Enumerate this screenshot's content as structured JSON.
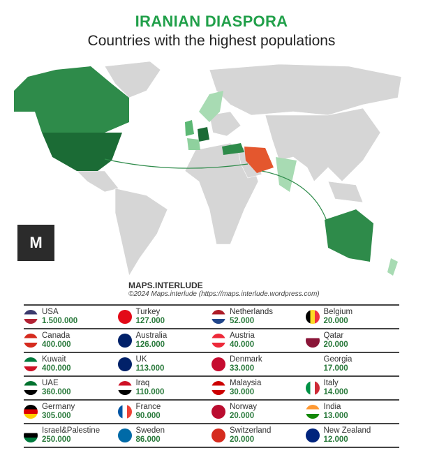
{
  "header": {
    "title": "IRANIAN DIASPORA",
    "subtitle": "Countries with the highest populations"
  },
  "logo": {
    "text": "M"
  },
  "credit": {
    "brand": "MAPS.INTERLUDE",
    "copyright": "©2024 Maps.interlude (https://maps.interlude.wordpress.com)"
  },
  "colors": {
    "title": "#21a04a",
    "iran": "#e4572e",
    "highest": "#1b6b35",
    "high": "#2e8b4a",
    "mid": "#5cb874",
    "low": "#a8dbb3",
    "none": "#d6d6d6"
  },
  "countries": [
    [
      {
        "name": "USA",
        "value": "1.500.000",
        "flag": "#3c3b6e,#fff,#b22234"
      },
      {
        "name": "Turkey",
        "value": "127.000",
        "flag": "#e30a17"
      },
      {
        "name": "Netherlands",
        "value": "52.000",
        "flag": "#ae1c28,#fff,#21468b"
      },
      {
        "name": "Belgium",
        "value": "20.000",
        "flag": "#000,#fdda24,#ef3340"
      }
    ],
    [
      {
        "name": "Canada",
        "value": "400.000",
        "flag": "#d52b1e,#fff,#d52b1e"
      },
      {
        "name": "Australia",
        "value": "126.000",
        "flag": "#012169"
      },
      {
        "name": "Austria",
        "value": "40.000",
        "flag": "#ed2939,#fff,#ed2939"
      },
      {
        "name": "Qatar",
        "value": "20.000",
        "flag": "#fff,#8a1538,#8a1538"
      }
    ],
    [
      {
        "name": "Kuwait",
        "value": "400.000",
        "flag": "#007a3d,#fff,#ce1126"
      },
      {
        "name": "UK",
        "value": "113.000",
        "flag": "#012169"
      },
      {
        "name": "Denmark",
        "value": "33.000",
        "flag": "#c60c30"
      },
      {
        "name": "Georgia",
        "value": "17.000",
        "flag": "#fff"
      }
    ],
    [
      {
        "name": "UAE",
        "value": "360.000",
        "flag": "#00732f,#fff,#000"
      },
      {
        "name": "Iraq",
        "value": "110.000",
        "flag": "#ce1126,#fff,#000"
      },
      {
        "name": "Malaysia",
        "value": "30.000",
        "flag": "#cc0001,#fff,#cc0001"
      },
      {
        "name": "Italy",
        "value": "14.000",
        "flag": "#009246,#fff,#ce2b37"
      }
    ],
    [
      {
        "name": "Germany",
        "value": "305.000",
        "flag": "#000,#dd0000,#ffce00"
      },
      {
        "name": "France",
        "value": "90.000",
        "flag": "#0055a4,#fff,#ef4135"
      },
      {
        "name": "Norway",
        "value": "20.000",
        "flag": "#ba0c2f"
      },
      {
        "name": "India",
        "value": "13.000",
        "flag": "#ff9933,#fff,#138808"
      }
    ],
    [
      {
        "name": "Israel&Palestine",
        "value": "250.000",
        "flag": "#fff,#000,#007a3d"
      },
      {
        "name": "Sweden",
        "value": "86.000",
        "flag": "#006aa7"
      },
      {
        "name": "Switzerland",
        "value": "20.000",
        "flag": "#d52b1e"
      },
      {
        "name": "New Zealand",
        "value": "12.000",
        "flag": "#00247d"
      }
    ]
  ]
}
